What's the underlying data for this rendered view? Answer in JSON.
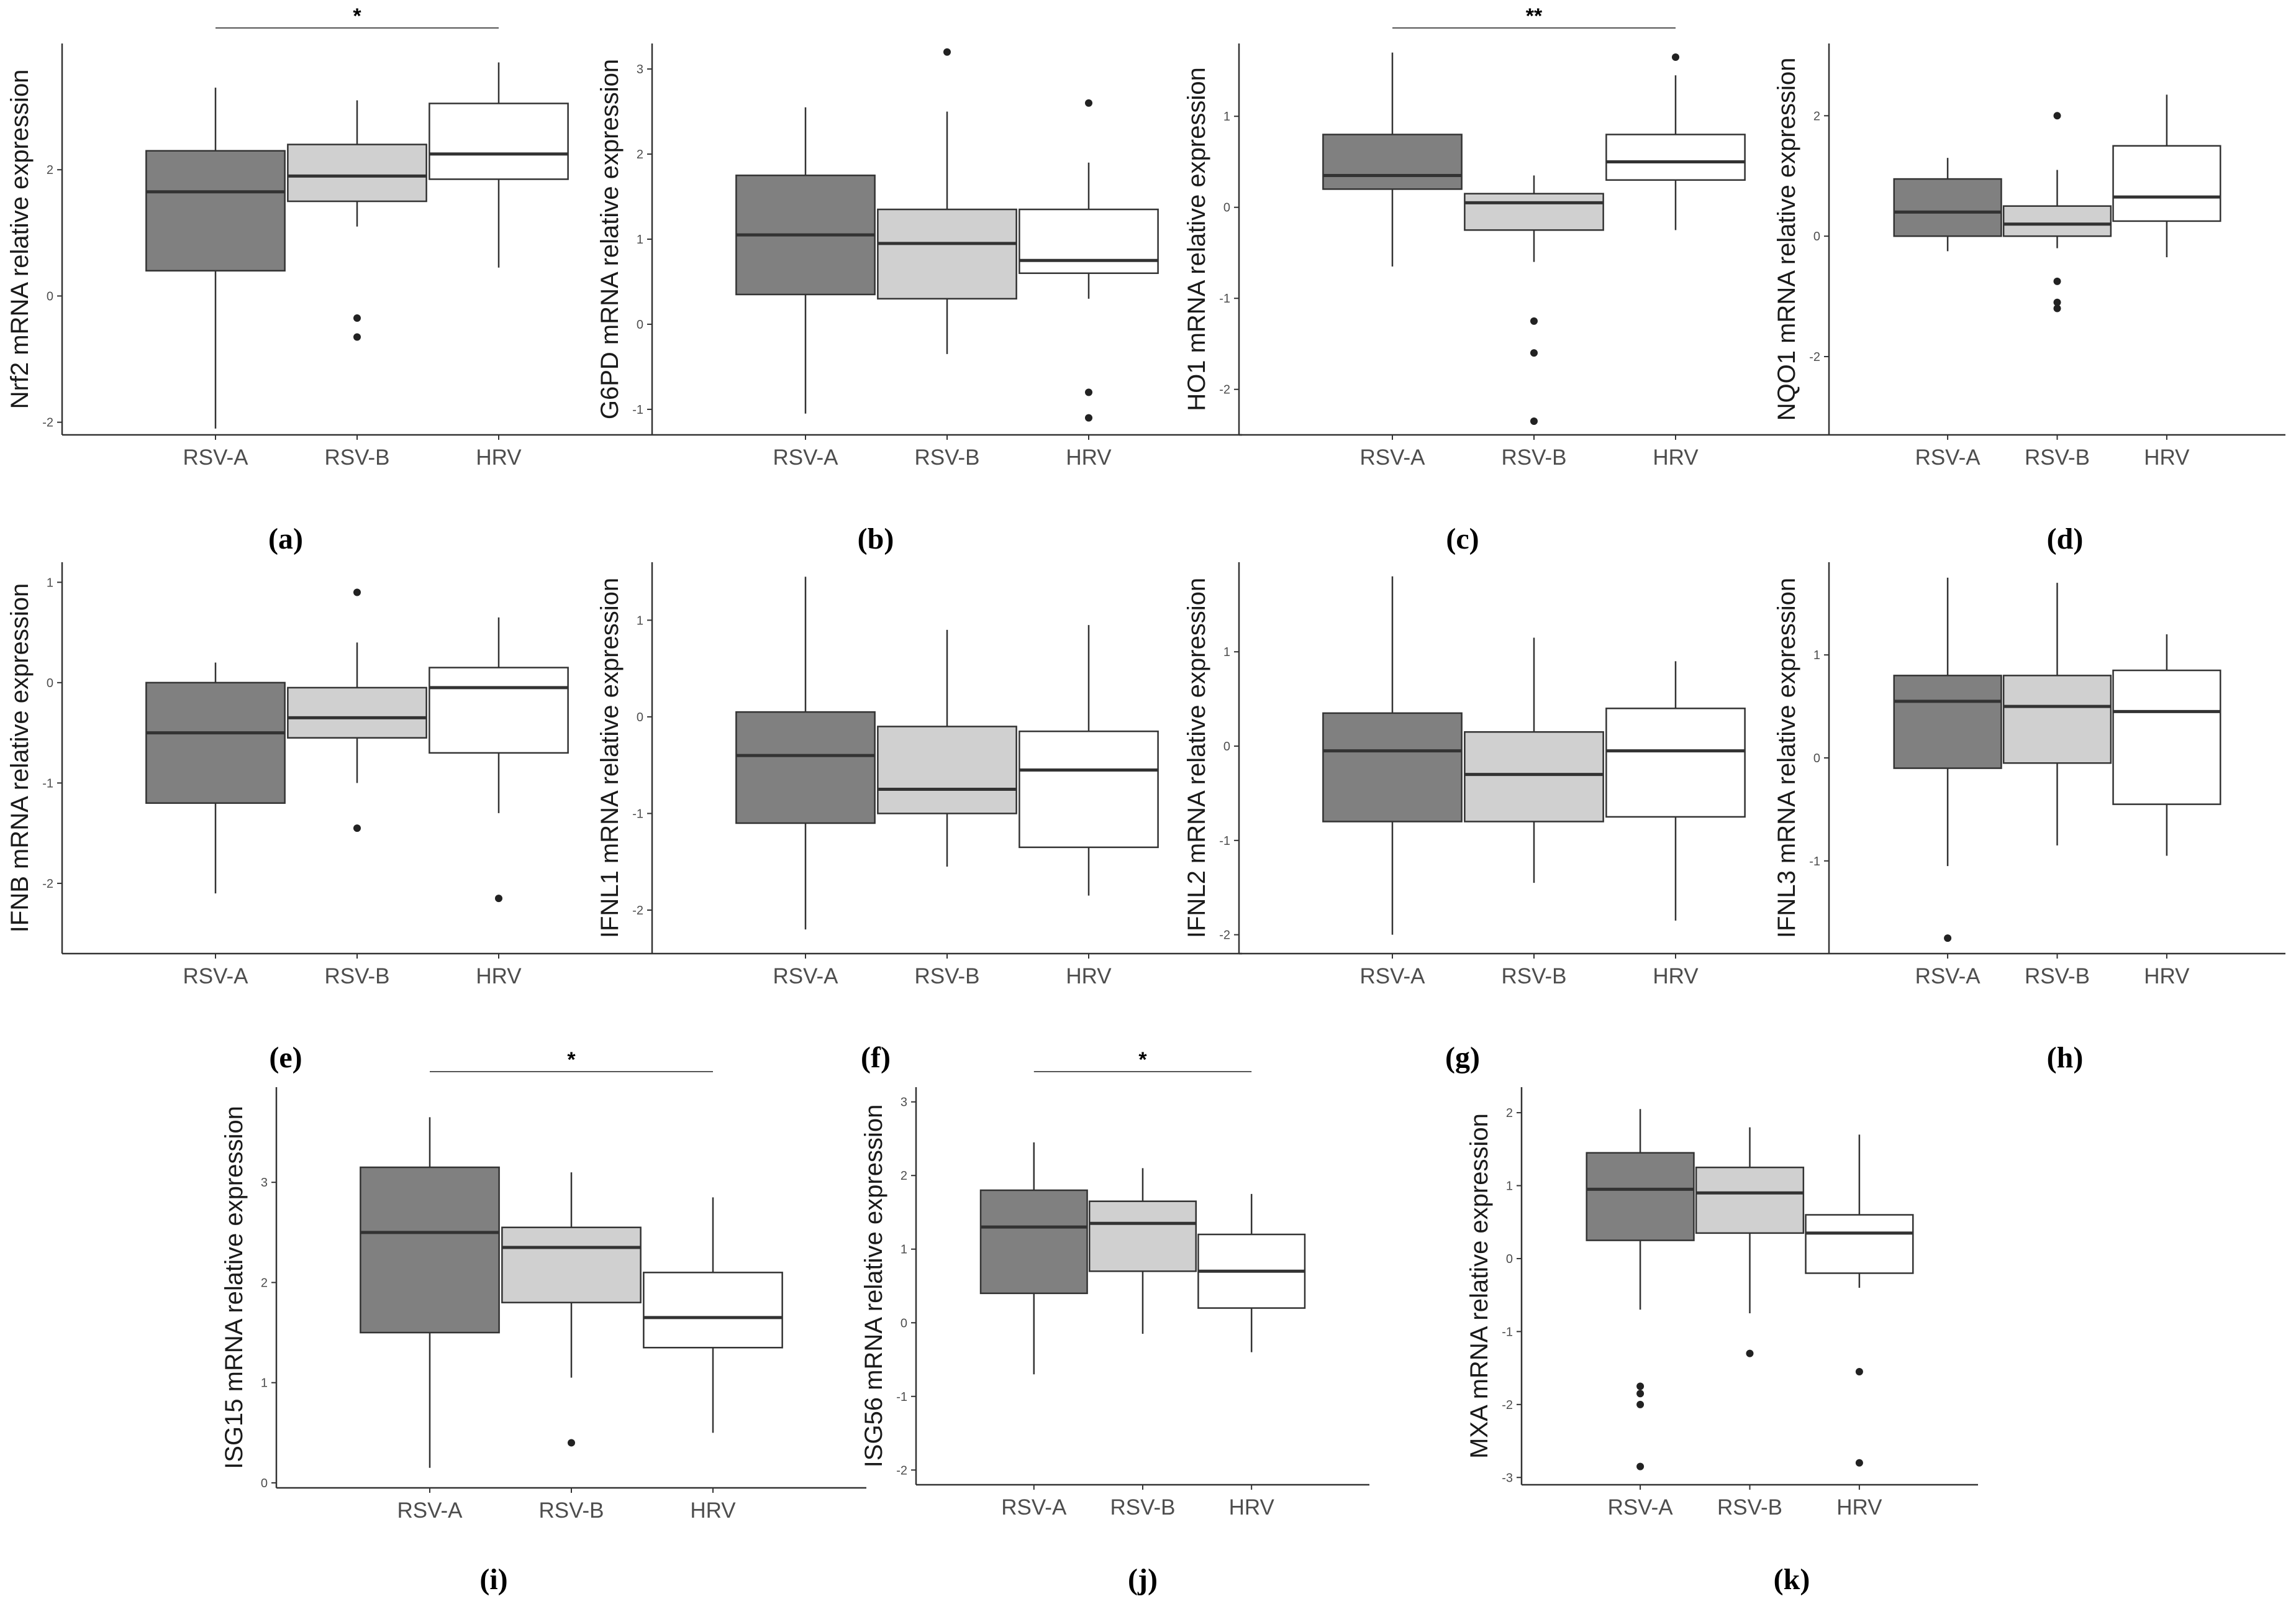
{
  "chart_data": [
    {
      "type": "box",
      "caption": "(a)",
      "ylabel": "Nrf2 mRNA relative expression",
      "categories": [
        "RSV-A",
        "RSV-B",
        "HRV"
      ],
      "colors": [
        "#808080",
        "#d0d0d0",
        "#ffffff"
      ],
      "ylim": [
        -2.2,
        4.0
      ],
      "yticks": [
        -2,
        0,
        2
      ],
      "boxes": [
        {
          "whisker_low": -2.1,
          "q1": 0.4,
          "median": 1.65,
          "q3": 2.3,
          "whisker_high": 3.3,
          "outliers": []
        },
        {
          "whisker_low": 1.1,
          "q1": 1.5,
          "median": 1.9,
          "q3": 2.4,
          "whisker_high": 3.1,
          "outliers": [
            -0.35,
            -0.65
          ]
        },
        {
          "whisker_low": 0.45,
          "q1": 1.85,
          "median": 2.25,
          "q3": 3.05,
          "whisker_high": 3.7,
          "outliers": []
        }
      ],
      "significance": {
        "from": "RSV-A",
        "to": "HRV",
        "label": "*"
      }
    },
    {
      "type": "box",
      "caption": "(b)",
      "ylabel": "G6PD mRNA relative expression",
      "categories": [
        "RSV-A",
        "RSV-B",
        "HRV"
      ],
      "colors": [
        "#808080",
        "#d0d0d0",
        "#ffffff"
      ],
      "ylim": [
        -1.3,
        3.3
      ],
      "yticks": [
        -1,
        0,
        1,
        2,
        3
      ],
      "boxes": [
        {
          "whisker_low": -1.05,
          "q1": 0.35,
          "median": 1.05,
          "q3": 1.75,
          "whisker_high": 2.55,
          "outliers": []
        },
        {
          "whisker_low": -0.35,
          "q1": 0.3,
          "median": 0.95,
          "q3": 1.35,
          "whisker_high": 2.5,
          "outliers": [
            3.2
          ]
        },
        {
          "whisker_low": 0.3,
          "q1": 0.6,
          "median": 0.75,
          "q3": 1.35,
          "whisker_high": 1.9,
          "outliers": [
            2.6,
            -0.8,
            -1.1
          ]
        }
      ]
    },
    {
      "type": "box",
      "caption": "(c)",
      "ylabel": "HO1 mRNA relative expression",
      "categories": [
        "RSV-A",
        "RSV-B",
        "HRV"
      ],
      "colors": [
        "#808080",
        "#d0d0d0",
        "#ffffff"
      ],
      "ylim": [
        -2.5,
        1.8
      ],
      "yticks": [
        -2,
        -1,
        0,
        1
      ],
      "boxes": [
        {
          "whisker_low": -0.65,
          "q1": 0.2,
          "median": 0.35,
          "q3": 0.8,
          "whisker_high": 1.7,
          "outliers": []
        },
        {
          "whisker_low": -0.6,
          "q1": -0.25,
          "median": 0.05,
          "q3": 0.15,
          "whisker_high": 0.35,
          "outliers": [
            -1.25,
            -1.6,
            -2.35
          ]
        },
        {
          "whisker_low": -0.25,
          "q1": 0.3,
          "median": 0.5,
          "q3": 0.8,
          "whisker_high": 1.45,
          "outliers": [
            1.65
          ]
        }
      ],
      "significance": {
        "from": "RSV-A",
        "to": "HRV",
        "label": "**"
      }
    },
    {
      "type": "box",
      "caption": "(d)",
      "ylabel": "NQO1 mRNA relative expression",
      "categories": [
        "RSV-A",
        "RSV-B",
        "HRV"
      ],
      "colors": [
        "#808080",
        "#d0d0d0",
        "#ffffff"
      ],
      "ylim": [
        -3.3,
        3.2
      ],
      "yticks": [
        -2,
        0,
        2
      ],
      "boxes": [
        {
          "whisker_low": -0.25,
          "q1": 0.0,
          "median": 0.4,
          "q3": 0.95,
          "whisker_high": 1.3,
          "outliers": []
        },
        {
          "whisker_low": -0.2,
          "q1": 0.0,
          "median": 0.2,
          "q3": 0.5,
          "whisker_high": 1.1,
          "outliers": [
            2.0,
            -0.75,
            -1.1,
            -1.2
          ]
        },
        {
          "whisker_low": -0.35,
          "q1": 0.25,
          "median": 0.65,
          "q3": 1.5,
          "whisker_high": 2.35,
          "outliers": []
        }
      ]
    },
    {
      "type": "box",
      "caption": "(e)",
      "ylabel": "IFNB mRNA relative expression",
      "categories": [
        "RSV-A",
        "RSV-B",
        "HRV"
      ],
      "colors": [
        "#808080",
        "#d0d0d0",
        "#ffffff"
      ],
      "ylim": [
        -2.7,
        1.2
      ],
      "yticks": [
        -2,
        -1,
        0,
        1
      ],
      "boxes": [
        {
          "whisker_low": -2.1,
          "q1": -1.2,
          "median": -0.5,
          "q3": 0.0,
          "whisker_high": 0.2,
          "outliers": []
        },
        {
          "whisker_low": -1.0,
          "q1": -0.55,
          "median": -0.35,
          "q3": -0.05,
          "whisker_high": 0.4,
          "outliers": [
            0.9,
            -1.45
          ]
        },
        {
          "whisker_low": -1.3,
          "q1": -0.7,
          "median": -0.05,
          "q3": 0.15,
          "whisker_high": 0.65,
          "outliers": [
            -2.15
          ]
        }
      ]
    },
    {
      "type": "box",
      "caption": "(f)",
      "ylabel": "IFNL1 mRNA relative expression",
      "categories": [
        "RSV-A",
        "RSV-B",
        "HRV"
      ],
      "colors": [
        "#808080",
        "#d0d0d0",
        "#ffffff"
      ],
      "ylim": [
        -2.45,
        1.6
      ],
      "yticks": [
        -2,
        -1,
        0,
        1
      ],
      "boxes": [
        {
          "whisker_low": -2.2,
          "q1": -1.1,
          "median": -0.4,
          "q3": 0.05,
          "whisker_high": 1.45,
          "outliers": []
        },
        {
          "whisker_low": -1.55,
          "q1": -1.0,
          "median": -0.75,
          "q3": -0.1,
          "whisker_high": 0.9,
          "outliers": []
        },
        {
          "whisker_low": -1.85,
          "q1": -1.35,
          "median": -0.55,
          "q3": -0.15,
          "whisker_high": 0.95,
          "outliers": []
        }
      ]
    },
    {
      "type": "box",
      "caption": "(g)",
      "ylabel": "IFNL2 mRNA relative expression",
      "categories": [
        "RSV-A",
        "RSV-B",
        "HRV"
      ],
      "colors": [
        "#808080",
        "#d0d0d0",
        "#ffffff"
      ],
      "ylim": [
        -2.2,
        1.95
      ],
      "yticks": [
        -2,
        -1,
        0,
        1
      ],
      "boxes": [
        {
          "whisker_low": -2.0,
          "q1": -0.8,
          "median": -0.05,
          "q3": 0.35,
          "whisker_high": 1.8,
          "outliers": []
        },
        {
          "whisker_low": -1.45,
          "q1": -0.8,
          "median": -0.3,
          "q3": 0.15,
          "whisker_high": 1.15,
          "outliers": []
        },
        {
          "whisker_low": -1.85,
          "q1": -0.75,
          "median": -0.05,
          "q3": 0.4,
          "whisker_high": 0.9,
          "outliers": []
        }
      ]
    },
    {
      "type": "box",
      "caption": "(h)",
      "ylabel": "IFNL3 mRNA relative expression",
      "categories": [
        "RSV-A",
        "RSV-B",
        "HRV"
      ],
      "colors": [
        "#808080",
        "#d0d0d0",
        "#ffffff"
      ],
      "ylim": [
        -1.9,
        1.9
      ],
      "yticks": [
        -1,
        0,
        1
      ],
      "boxes": [
        {
          "whisker_low": -1.05,
          "q1": -0.1,
          "median": 0.55,
          "q3": 0.8,
          "whisker_high": 1.75,
          "outliers": [
            -1.75
          ]
        },
        {
          "whisker_low": -0.85,
          "q1": -0.05,
          "median": 0.5,
          "q3": 0.8,
          "whisker_high": 1.7,
          "outliers": []
        },
        {
          "whisker_low": -0.95,
          "q1": -0.45,
          "median": 0.45,
          "q3": 0.85,
          "whisker_high": 1.2,
          "outliers": []
        }
      ]
    },
    {
      "type": "box",
      "caption": "(i)",
      "ylabel": "ISG15 mRNA relative expression",
      "categories": [
        "RSV-A",
        "RSV-B",
        "HRV"
      ],
      "colors": [
        "#808080",
        "#d0d0d0",
        "#ffffff"
      ],
      "ylim": [
        -0.05,
        3.95
      ],
      "yticks": [
        0,
        1,
        2,
        3
      ],
      "boxes": [
        {
          "whisker_low": 0.15,
          "q1": 1.5,
          "median": 2.5,
          "q3": 3.15,
          "whisker_high": 3.65,
          "outliers": []
        },
        {
          "whisker_low": 1.05,
          "q1": 1.8,
          "median": 2.35,
          "q3": 2.55,
          "whisker_high": 3.1,
          "outliers": [
            0.4
          ]
        },
        {
          "whisker_low": 0.5,
          "q1": 1.35,
          "median": 1.65,
          "q3": 2.1,
          "whisker_high": 2.85,
          "outliers": []
        }
      ],
      "significance": {
        "from": "RSV-A",
        "to": "HRV",
        "label": "*"
      }
    },
    {
      "type": "box",
      "caption": "(j)",
      "ylabel": "ISG56 mRNA relative expression",
      "categories": [
        "RSV-A",
        "RSV-B",
        "HRV"
      ],
      "colors": [
        "#808080",
        "#d0d0d0",
        "#ffffff"
      ],
      "ylim": [
        -2.2,
        3.2
      ],
      "yticks": [
        -2,
        -1,
        0,
        1,
        2,
        3
      ],
      "boxes": [
        {
          "whisker_low": -0.7,
          "q1": 0.4,
          "median": 1.3,
          "q3": 1.8,
          "whisker_high": 2.45,
          "outliers": []
        },
        {
          "whisker_low": -0.15,
          "q1": 0.7,
          "median": 1.35,
          "q3": 1.65,
          "whisker_high": 2.1,
          "outliers": []
        },
        {
          "whisker_low": -0.4,
          "q1": 0.2,
          "median": 0.7,
          "q3": 1.2,
          "whisker_high": 1.75,
          "outliers": []
        }
      ],
      "significance": {
        "from": "RSV-A",
        "to": "HRV",
        "label": "*"
      }
    },
    {
      "type": "box",
      "caption": "(k)",
      "ylabel": "MXA mRNA relative expression",
      "categories": [
        "RSV-A",
        "RSV-B",
        "HRV"
      ],
      "colors": [
        "#808080",
        "#d0d0d0",
        "#ffffff"
      ],
      "ylim": [
        -3.1,
        2.35
      ],
      "yticks": [
        -3,
        -2,
        -1,
        0,
        1,
        2
      ],
      "boxes": [
        {
          "whisker_low": -0.7,
          "q1": 0.25,
          "median": 0.95,
          "q3": 1.45,
          "whisker_high": 2.05,
          "outliers": [
            -1.75,
            -1.85,
            -2.0,
            -2.85
          ]
        },
        {
          "whisker_low": -0.75,
          "q1": 0.35,
          "median": 0.9,
          "q3": 1.25,
          "whisker_high": 1.8,
          "outliers": [
            -1.3
          ]
        },
        {
          "whisker_low": -0.4,
          "q1": -0.2,
          "median": 0.35,
          "q3": 0.6,
          "whisker_high": 1.7,
          "outliers": [
            -1.55,
            -2.8
          ]
        }
      ]
    }
  ]
}
